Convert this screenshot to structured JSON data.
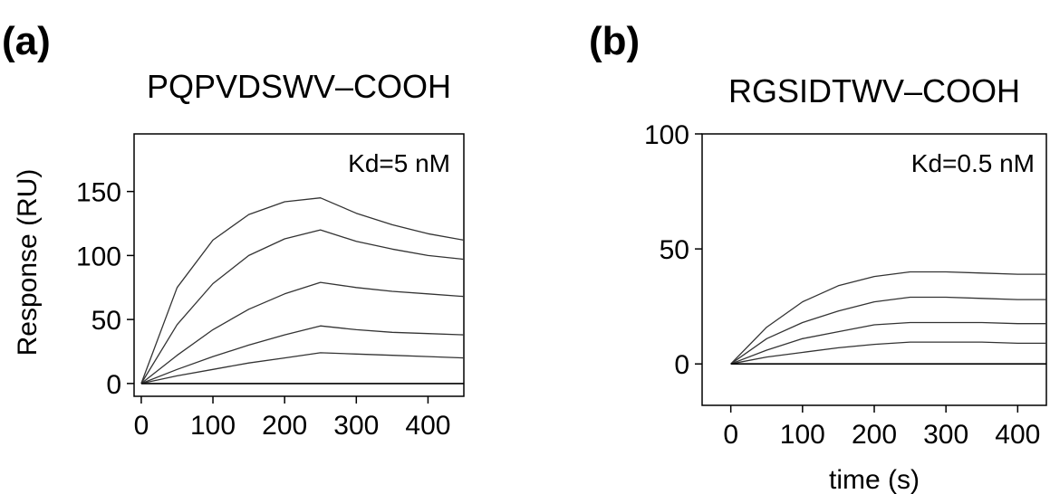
{
  "chart_data": [
    {
      "type": "line",
      "panel_label": "(a)",
      "title": "PQPVDSWV–COOH",
      "annotation": "Kd=5 nM",
      "xlabel": "",
      "ylabel": "Response (RU)",
      "xlim": [
        -10,
        450
      ],
      "ylim": [
        -10,
        195
      ],
      "xticks": [
        0,
        100,
        200,
        300,
        400
      ],
      "yticks": [
        0,
        50,
        100,
        150
      ],
      "x": [
        0,
        50,
        100,
        150,
        200,
        250,
        300,
        350,
        400,
        450
      ],
      "series": [
        {
          "values": [
            0,
            75,
            112,
            132,
            142,
            145,
            133,
            124,
            117,
            112
          ]
        },
        {
          "values": [
            0,
            46,
            78,
            100,
            113,
            120,
            111,
            105,
            100,
            97
          ]
        },
        {
          "values": [
            0,
            22,
            42,
            58,
            70,
            79,
            75,
            72,
            70,
            68
          ]
        },
        {
          "values": [
            0,
            11,
            21,
            30,
            38,
            45,
            42,
            40,
            39,
            38
          ]
        },
        {
          "values": [
            0,
            6,
            11,
            16,
            20,
            24,
            23,
            22,
            21,
            20
          ]
        },
        {
          "values": [
            0,
            0,
            0,
            0,
            0,
            0,
            0,
            0,
            0,
            0
          ]
        }
      ]
    },
    {
      "type": "line",
      "panel_label": "(b)",
      "title": "RGSIDTWV–COOH",
      "annotation": "Kd=0.5 nM",
      "xlabel": "time (s)",
      "ylabel": "",
      "xlim": [
        -40,
        440
      ],
      "ylim": [
        -18,
        100
      ],
      "xticks": [
        0,
        100,
        200,
        300,
        400
      ],
      "yticks": [
        0,
        50,
        100
      ],
      "x": [
        0,
        50,
        100,
        150,
        200,
        250,
        300,
        350,
        400,
        440
      ],
      "series": [
        {
          "values": [
            0,
            16,
            27,
            34,
            38,
            40,
            40,
            39.5,
            39,
            39
          ]
        },
        {
          "values": [
            0,
            11,
            18,
            23,
            27,
            29,
            29,
            28.5,
            28,
            28
          ]
        },
        {
          "values": [
            0,
            6,
            11,
            14,
            17,
            18,
            18,
            18,
            17.5,
            17.5
          ]
        },
        {
          "values": [
            0,
            3,
            5,
            7,
            8.5,
            9.5,
            9.5,
            9.5,
            9,
            9
          ]
        },
        {
          "values": [
            0,
            0,
            0,
            0,
            0,
            0,
            0,
            0,
            0,
            0
          ]
        }
      ]
    }
  ]
}
